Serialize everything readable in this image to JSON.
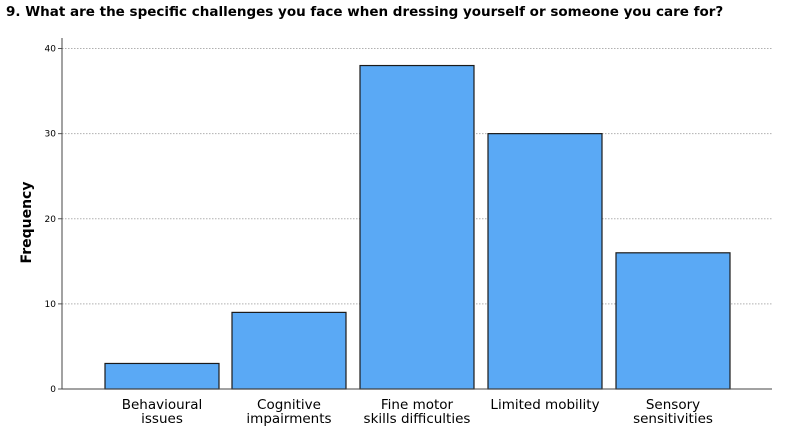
{
  "chart_data": {
    "type": "bar",
    "title": "9. What are the specific challenges you face when dressing yourself or someone you care for?",
    "xlabel": "",
    "ylabel": "Frequency",
    "categories": [
      [
        "Behavioural",
        "issues"
      ],
      [
        "Cognitive",
        "impairments"
      ],
      [
        "Fine motor",
        "skills difficulties"
      ],
      [
        "Limited mobility"
      ],
      [
        "Sensory",
        "sensitivities"
      ]
    ],
    "values": [
      3,
      9,
      38,
      30,
      16
    ],
    "ylim": [
      0,
      41
    ],
    "yticks": [
      0,
      10,
      20,
      30,
      40
    ],
    "grid": true,
    "bar_color": "#5aa9f5",
    "bar_edge_color": "#1a1a1a",
    "grid_color": "#b0b0b0"
  }
}
